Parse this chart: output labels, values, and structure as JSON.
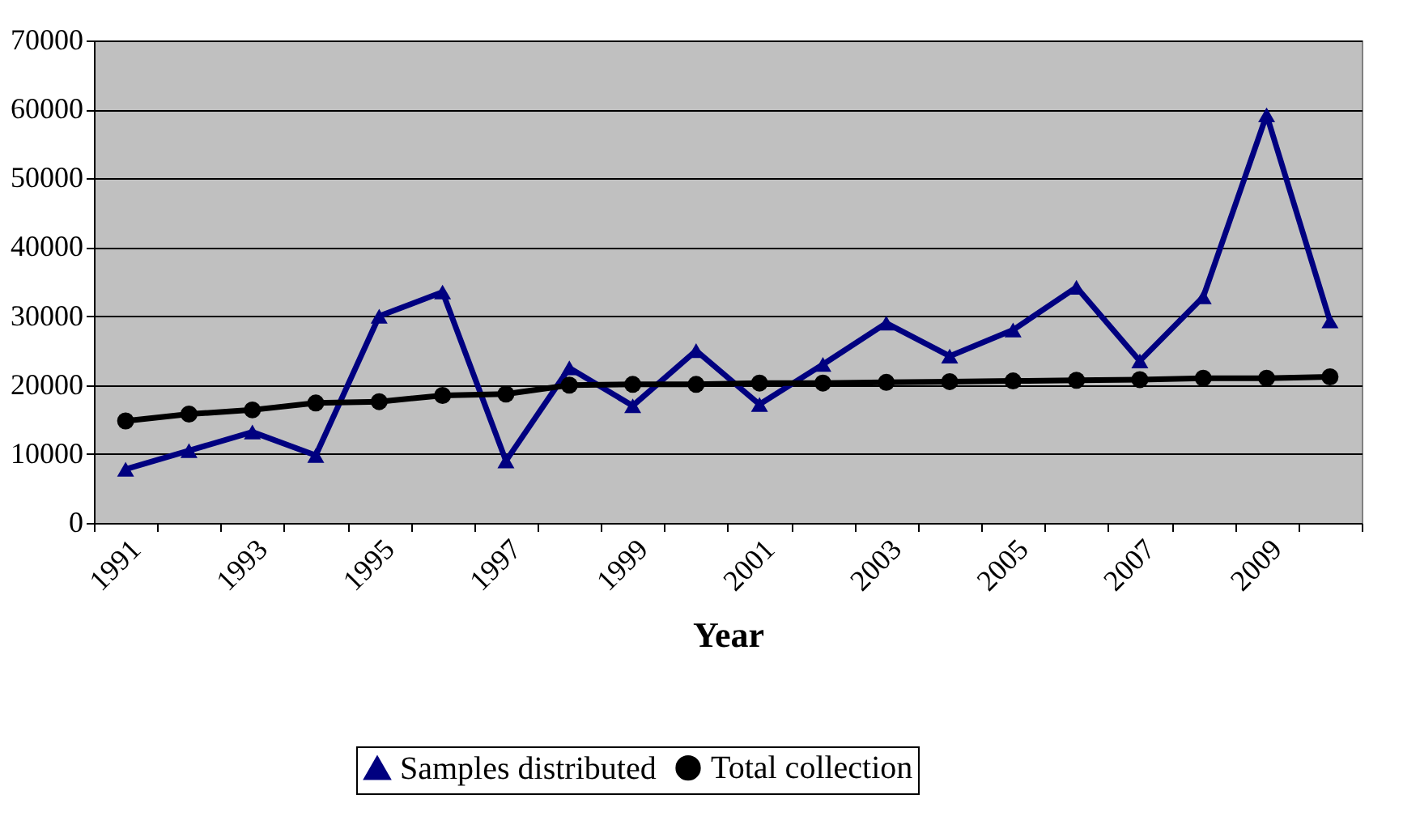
{
  "chart_data": {
    "type": "line",
    "xlabel": "Year",
    "categories": [
      "1991",
      null,
      "1993",
      null,
      "1995",
      null,
      "1997",
      null,
      "1999",
      null,
      "2001",
      null,
      "2003",
      null,
      "2005",
      null,
      "2007",
      null,
      "2009",
      null
    ],
    "series": [
      {
        "name": "Samples distributed",
        "color": "#000080",
        "marker": "triangle",
        "values": [
          7800,
          10500,
          13200,
          9800,
          30000,
          33500,
          9000,
          22500,
          17000,
          25000,
          17200,
          23000,
          29000,
          24200,
          28000,
          34200,
          23500,
          32800,
          59200,
          29300
        ]
      },
      {
        "name": "Total collection",
        "color": "#000000",
        "marker": "circle",
        "values": [
          14800,
          15800,
          16400,
          17400,
          17600,
          18500,
          18700,
          20000,
          20100,
          20100,
          20300,
          20300,
          20400,
          20500,
          20600,
          20700,
          20800,
          21000,
          21000,
          21200
        ]
      }
    ],
    "ylim": [
      0,
      70000
    ],
    "yticks": [
      0,
      10000,
      20000,
      30000,
      40000,
      50000,
      60000,
      70000
    ],
    "grid": "y",
    "legend": "bottom",
    "line_style": "solid"
  }
}
